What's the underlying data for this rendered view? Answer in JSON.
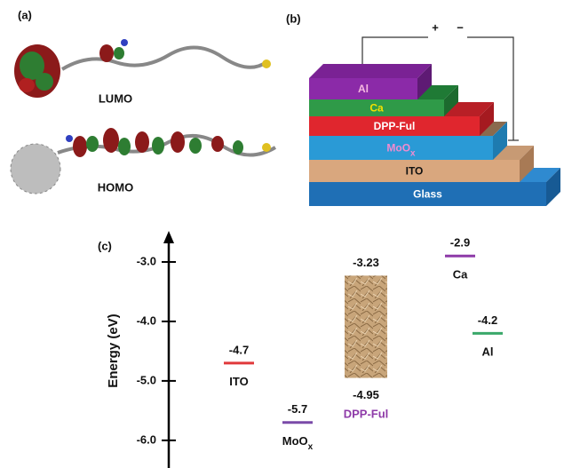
{
  "panel_a": {
    "label": "(a)",
    "lumo": "LUMO",
    "homo": "HOMO"
  },
  "panel_b": {
    "label": "(b)",
    "plus": "+",
    "minus": "−",
    "layers": [
      {
        "name": "Glass"
      },
      {
        "name": "ITO"
      },
      {
        "name": "MoO",
        "sub": "x"
      },
      {
        "name": "DPP-Ful"
      },
      {
        "name": "Ca"
      },
      {
        "name": "Al"
      }
    ]
  },
  "chart_data": {
    "type": "energy-level",
    "label": "(c)",
    "y_label": "Energy (eV)",
    "ylim": [
      -6.45,
      -2.5
    ],
    "yticks": [
      {
        "value": -3,
        "label": "-3.0"
      },
      {
        "value": -4,
        "label": "-4.0"
      },
      {
        "value": -5,
        "label": "-5.0"
      },
      {
        "value": -6,
        "label": "-6.0"
      }
    ],
    "levels": [
      {
        "name": "ITO",
        "value": -4.7,
        "color": "#e0393b"
      },
      {
        "name": "MoO",
        "sub": "x",
        "value": -5.7,
        "color": "#7a4aa8"
      },
      {
        "name": "DPP-Ful",
        "lumo": -3.23,
        "homo": -4.95,
        "color": "#b08a5c",
        "label_color": "#8e3aa8"
      },
      {
        "name": "Ca",
        "value": -2.9,
        "color": "#8e3aa8"
      },
      {
        "name": "Al",
        "value": -4.2,
        "color": "#3aa86a"
      }
    ]
  }
}
